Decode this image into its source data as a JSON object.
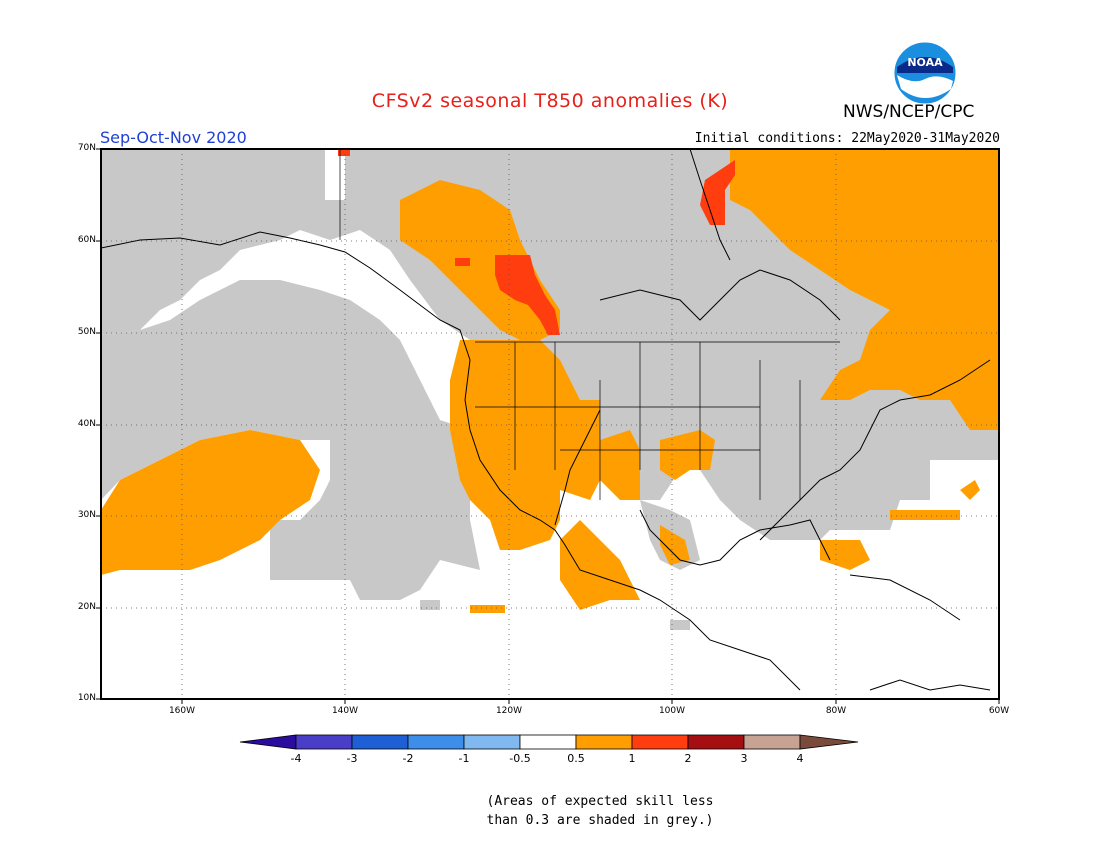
{
  "title": "CFSv2 seasonal T850 anomalies (K)",
  "season": "Sep-Oct-Nov 2020",
  "initial_conditions": "Initial conditions: 22May2020-31May2020",
  "agency": "NWS/NCEP/CPC",
  "logo_text": "NOAA",
  "latitude_labels": [
    "70N",
    "60N",
    "50N",
    "40N",
    "30N",
    "20N",
    "10N"
  ],
  "longitude_labels": [
    "160W",
    "140W",
    "120W",
    "100W",
    "80W",
    "60W"
  ],
  "colorbar": {
    "labels": [
      "-4",
      "-3",
      "-2",
      "-1",
      "-0.5",
      "0.5",
      "1",
      "2",
      "3",
      "4"
    ],
    "colors": [
      "#2a0c9e",
      "#4a3ec9",
      "#1f5fd6",
      "#3c8ee8",
      "#7fb9f0",
      "#ffffff",
      "#ff9e00",
      "#ff3d0f",
      "#a50f12",
      "#c8a394",
      "#7a4a3a"
    ]
  },
  "note_lines": [
    "(Areas of expected skill less",
    "than 0.3 are shaded in grey.)"
  ],
  "legend_colors": {
    "low_skill": "#c8c8c8",
    "anomaly_0_5_to_1": "#ff9e00",
    "anomaly_1_to_2": "#ff3d0f"
  }
}
